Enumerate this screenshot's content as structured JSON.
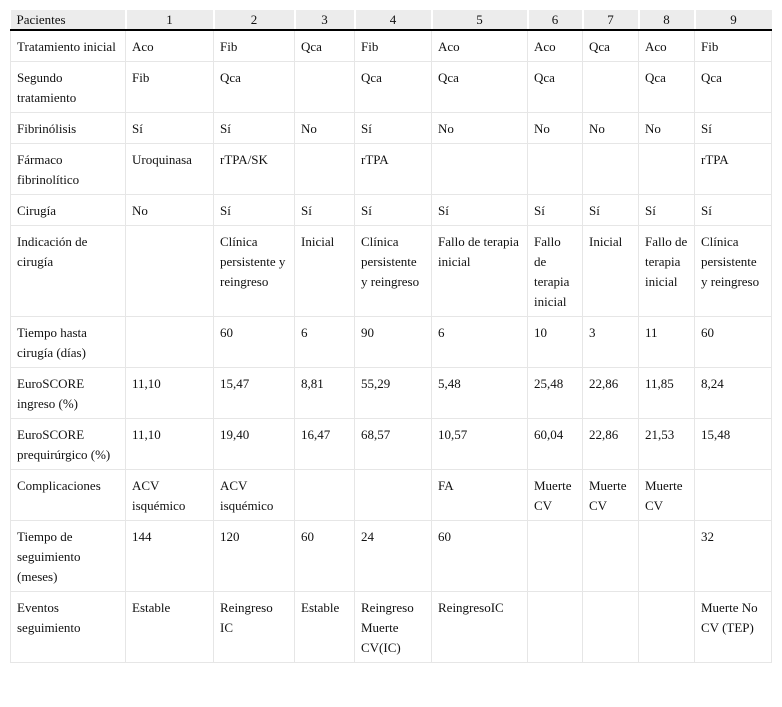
{
  "table": {
    "headers": [
      "Pacientes",
      "1",
      "2",
      "3",
      "4",
      "5",
      "6",
      "7",
      "8",
      "9"
    ],
    "rows": [
      [
        "Tratamiento inicial",
        "Aco",
        "Fib",
        "Qca",
        "Fib",
        "Aco",
        "Aco",
        "Qca",
        "Aco",
        "Fib"
      ],
      [
        "Segundo tratamiento",
        "Fib",
        "Qca",
        "",
        "Qca",
        "Qca",
        "Qca",
        "",
        "Qca",
        "Qca"
      ],
      [
        "Fibrinólisis",
        "Sí",
        "Sí",
        "No",
        "Sí",
        "No",
        "No",
        "No",
        "No",
        "Sí"
      ],
      [
        "Fármaco fibrinolítico",
        "Uroquinasa",
        "rTPA/SK",
        "",
        "rTPA",
        "",
        "",
        "",
        "",
        "rTPA"
      ],
      [
        "Cirugía",
        "No",
        "Sí",
        "Sí",
        "Sí",
        "Sí",
        "Sí",
        "Sí",
        "Sí",
        "Sí"
      ],
      [
        "Indicación de cirugía",
        "",
        "Clínica persistente y reingreso",
        "Inicial",
        "Clínica persistente y reingreso",
        "Fallo de terapia inicial",
        "Fallo de terapia inicial",
        "Inicial",
        "Fallo de terapia inicial",
        "Clínica persistente y reingreso"
      ],
      [
        "Tiempo hasta cirugía (días)",
        "",
        "60",
        "6",
        "90",
        "6",
        "10",
        "3",
        "11",
        "60"
      ],
      [
        "EuroSCORE ingreso (%)",
        "11,10",
        "15,47",
        "8,81",
        "55,29",
        "5,48",
        "25,48",
        "22,86",
        "11,85",
        "8,24"
      ],
      [
        "EuroSCORE prequirúrgico (%)",
        "11,10",
        "19,40",
        "16,47",
        "68,57",
        "10,57",
        "60,04",
        "22,86",
        "21,53",
        "15,48"
      ],
      [
        "Complicaciones",
        "ACV isquémico",
        "ACV isquémico",
        "",
        "",
        "FA",
        "Muerte CV",
        "Muerte CV",
        "Muerte CV",
        ""
      ],
      [
        "Tiempo de seguimiento (meses)",
        "144",
        "120",
        "60",
        "24",
        "60",
        "",
        "",
        "",
        "32"
      ],
      [
        "Eventos seguimiento",
        "Estable",
        "Reingreso IC",
        "Estable",
        "Reingreso Muerte CV(IC)",
        "ReingresoIC",
        "",
        "",
        "",
        "Muerte No CV (TEP)"
      ]
    ]
  }
}
